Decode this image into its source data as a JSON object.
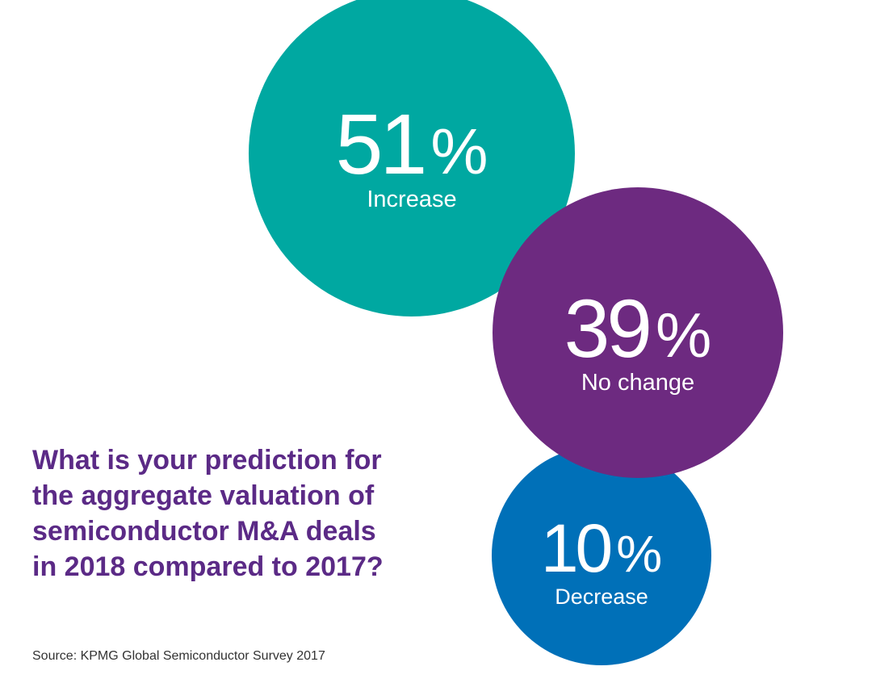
{
  "question": {
    "lines": [
      "What is your prediction for",
      "the aggregate valuation of",
      "semiconductor M&A deals",
      "in 2018 compared to 2017?"
    ]
  },
  "source": "Source: KPMG Global Semiconductor Survey 2017",
  "chart_data": {
    "type": "bubble",
    "title": "What is your prediction for the aggregate valuation of semiconductor M&A deals in 2018 compared to 2017?",
    "unit": "%",
    "slices": [
      {
        "label": "Increase",
        "value": 51,
        "color": "#00a8a1"
      },
      {
        "label": "No change",
        "value": 39,
        "color": "#6d2a80"
      },
      {
        "label": "Decrease",
        "value": 10,
        "color": "#0070b8"
      }
    ]
  }
}
